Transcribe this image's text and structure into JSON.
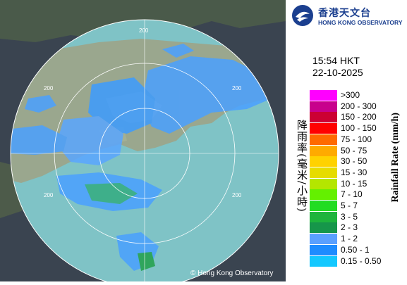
{
  "logo": {
    "name_zh": "香港天文台",
    "name_en": "HONG KONG OBSERVATORY"
  },
  "timestamp": {
    "time": "15:54 HKT",
    "date": "22-10-2025"
  },
  "legend": {
    "title_zh": "降雨率(毫米/小時)",
    "title_en": "Rainfall Rate (mm/h)",
    "bins": [
      {
        "label": ">300",
        "color": "#ff00ff"
      },
      {
        "label": "200 - 300",
        "color": "#c8008c"
      },
      {
        "label": "150 - 200",
        "color": "#cc0033"
      },
      {
        "label": "100 - 150",
        "color": "#ff0000"
      },
      {
        "label": "75 - 100",
        "color": "#ff6a00"
      },
      {
        "label": "50 - 75",
        "color": "#ffaa00"
      },
      {
        "label": "30 - 50",
        "color": "#ffd200"
      },
      {
        "label": "15 - 30",
        "color": "#e6dc00"
      },
      {
        "label": "10 - 15",
        "color": "#b4e600"
      },
      {
        "label": "7 - 10",
        "color": "#64f000"
      },
      {
        "label": "5 - 7",
        "color": "#22dc22"
      },
      {
        "label": "3 - 5",
        "color": "#1eb43c"
      },
      {
        "label": "2 - 3",
        "color": "#16964a"
      },
      {
        "label": "1 - 2",
        "color": "#5aa0ff"
      },
      {
        "label": "0.50 - 1",
        "color": "#1e8cff"
      },
      {
        "label": "0.15 - 0.50",
        "color": "#14c8ff"
      }
    ]
  },
  "radar": {
    "range_labels": [
      "200",
      "200",
      "200",
      "200",
      "200"
    ],
    "copyright": "© Hong Kong Observatory"
  }
}
